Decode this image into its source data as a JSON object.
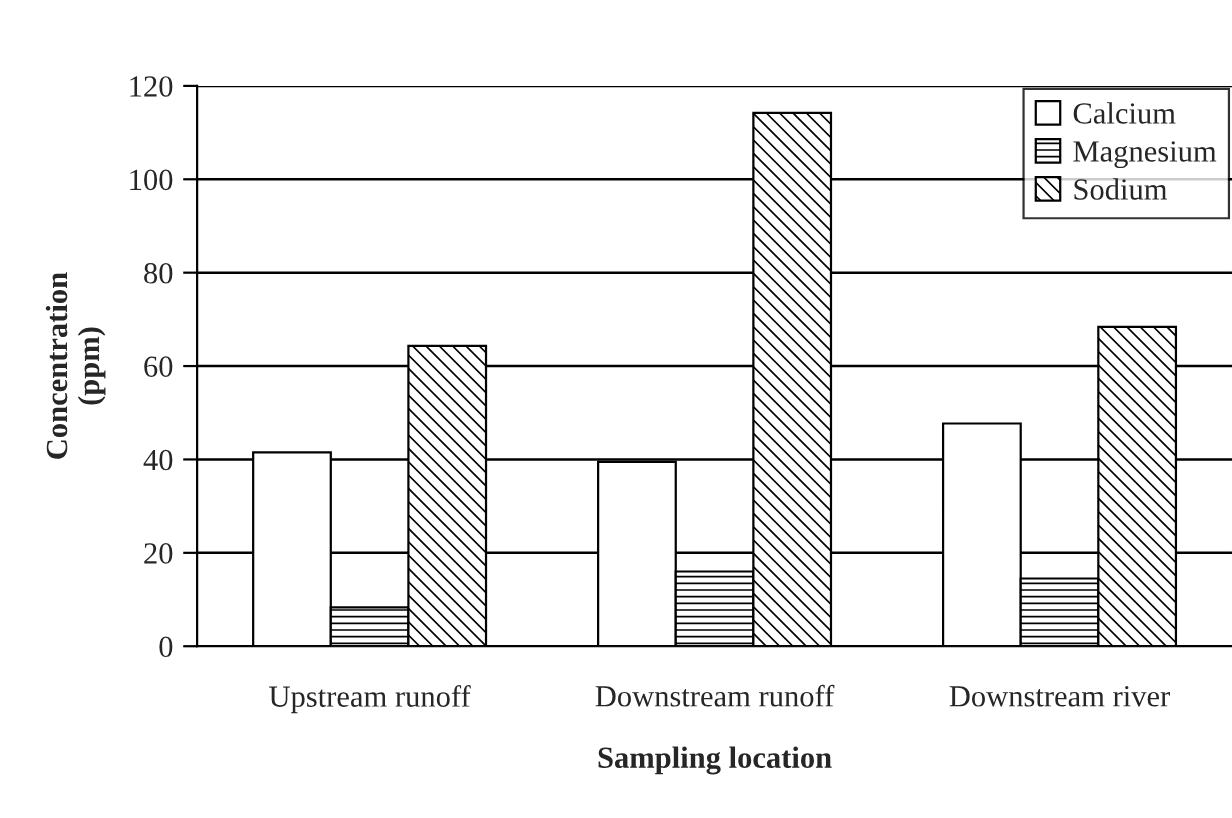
{
  "chart_data": {
    "type": "bar",
    "xlabel": "Sampling location",
    "ylabel": "Concentration\n(ppm)",
    "categories": [
      "Upstream runoff",
      "Downstream runoff",
      "Downstream river"
    ],
    "series": [
      {
        "name": "Calcium",
        "color": "#ffffff",
        "values": [
          41.5,
          39.5,
          47.7
        ]
      },
      {
        "name": "Magnesium",
        "color": "#000000",
        "values": [
          8.3,
          16,
          14.5
        ]
      },
      {
        "name": "Sodium",
        "color": "#000000",
        "values": [
          64.3,
          114.2,
          68.4
        ]
      }
    ],
    "ylim": [
      0,
      120
    ],
    "yticks": [
      0,
      20,
      40,
      60,
      80,
      100,
      120
    ],
    "grid": "y",
    "legend": "top right"
  }
}
